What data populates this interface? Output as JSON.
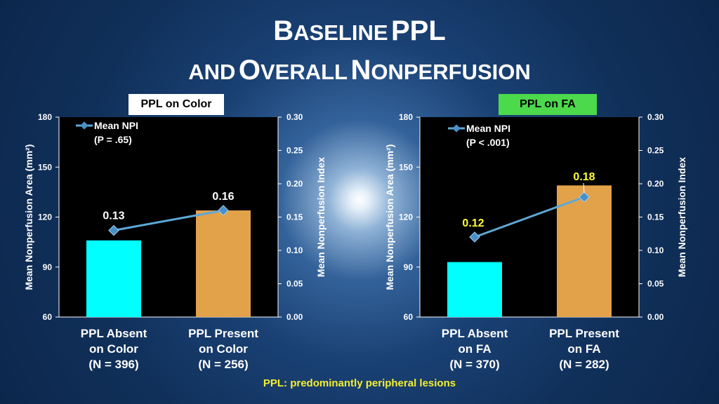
{
  "title": {
    "line1": "Baseline PPL",
    "line2": "and Overall Nonperfusion"
  },
  "footnote": "PPL: predominantly peripheral lesions",
  "colors": {
    "bar_absent": "#00ffff",
    "bar_present": "#e2a24a",
    "line": "#5ea8d6",
    "marker": "#4a90c8",
    "data_label_left": "#ffffff",
    "data_label_right": "#ffff33"
  },
  "chart_data": [
    {
      "type": "bar",
      "box_label": "PPL on Color",
      "categories": [
        [
          "PPL Absent",
          "on Color",
          "(N = 396)"
        ],
        [
          "PPL Present",
          "on Color",
          "(N = 256)"
        ]
      ],
      "values": [
        106,
        124
      ],
      "ylabel": "Mean Nonperfusion Area (mm²)",
      "ylim": [
        60,
        180
      ],
      "yticks": [
        "60",
        "90",
        "120",
        "150",
        "180"
      ],
      "secondary": {
        "type": "line",
        "legend": [
          "Mean NPI",
          "(P = .65)"
        ],
        "values": [
          0.13,
          0.16
        ],
        "labels": [
          "0.13",
          "0.16"
        ],
        "ylabel": "Mean Nonperfusion Index",
        "ylim": [
          0,
          0.3
        ],
        "yticks": [
          "0.00",
          "0.05",
          "0.10",
          "0.15",
          "0.20",
          "0.25",
          "0.30"
        ]
      }
    },
    {
      "type": "bar",
      "box_label": "PPL on FA",
      "categories": [
        [
          "PPL Absent",
          "on FA",
          "(N = 370)"
        ],
        [
          "PPL Present",
          "on FA",
          "(N = 282)"
        ]
      ],
      "values": [
        93,
        139
      ],
      "ylabel": "Mean Nonperfusion Area (mm²)",
      "ylim": [
        60,
        180
      ],
      "yticks": [
        "60",
        "90",
        "120",
        "150",
        "180"
      ],
      "secondary": {
        "type": "line",
        "legend": [
          "Mean NPI",
          "(P < .001)"
        ],
        "values": [
          0.12,
          0.18
        ],
        "labels": [
          "0.12",
          "0.18"
        ],
        "ylabel": "Mean Nonperfusion Index",
        "ylim": [
          0,
          0.3
        ],
        "yticks": [
          "0.00",
          "0.05",
          "0.10",
          "0.15",
          "0.20",
          "0.25",
          "0.30"
        ]
      }
    }
  ]
}
